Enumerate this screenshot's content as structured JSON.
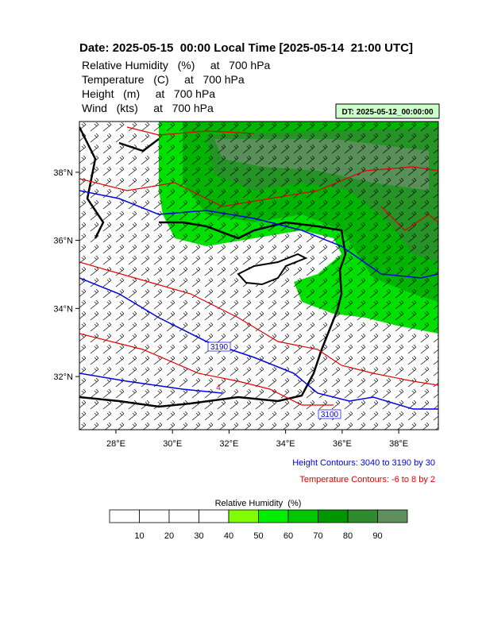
{
  "header": {
    "title": "Date: 2025-05-15  00:00 Local Time [2025-05-14  21:00 UTC]",
    "lines": [
      "Relative Humidity   (%)     at   700 hPa",
      "Temperature   (C)     at   700 hPa",
      "Height   (m)     at   700 hPa",
      "Wind   (kts)     at   700 hPa"
    ],
    "dt_box": "DT: 2025-05-12_00:00:00"
  },
  "map": {
    "xlim": [
      26.71,
      39.4
    ],
    "ylim": [
      30.44,
      39.49
    ],
    "xticks": [
      {
        "value": 28,
        "label": "28°E"
      },
      {
        "value": 30,
        "label": "30°E"
      },
      {
        "value": 32,
        "label": "32°E"
      },
      {
        "value": 34,
        "label": "34°E"
      },
      {
        "value": 36,
        "label": "36°E"
      },
      {
        "value": 38,
        "label": "38°E"
      }
    ],
    "yticks": [
      {
        "value": 32,
        "label": "32°N"
      },
      {
        "value": 34,
        "label": "34°N"
      },
      {
        "value": 36,
        "label": "36°N"
      },
      {
        "value": 38,
        "label": "38°N"
      }
    ],
    "contour_labels": [
      "3190",
      "4",
      "3100"
    ]
  },
  "notes": {
    "height": "Height Contours: 3040 to 3190 by 30",
    "temperature": "Temperature Contours: -6 to 8 by 2"
  },
  "colorbar": {
    "title": "Relative Humidity  (%)",
    "ticks": [
      10,
      20,
      30,
      40,
      50,
      60,
      70,
      80,
      90
    ],
    "colors": [
      "#ffffff",
      "#ffffff",
      "#ffffff",
      "#ffffff",
      "#80ff00",
      "#00ee00",
      "#00c800",
      "#009600",
      "#2e8b2e",
      "#5f8f5f"
    ]
  }
}
